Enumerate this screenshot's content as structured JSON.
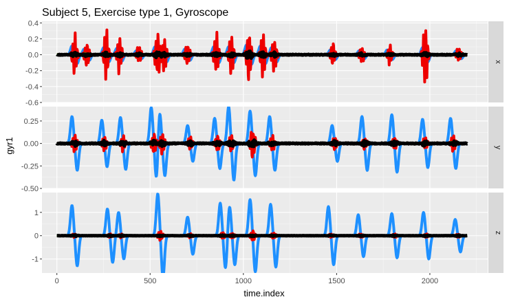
{
  "chart_data": {
    "type": "line",
    "title": "Subject 5, Exercise type 1, Gyroscope",
    "xlabel": "time.index",
    "ylabel": "gyr1",
    "xlim": [
      -80,
      2310
    ],
    "x_ticks": [
      0,
      500,
      1000,
      1500,
      2000
    ],
    "grid": true,
    "legend": "none",
    "x_extent": [
      0,
      2200
    ],
    "series_colors": [
      "#1e90ff",
      "#ee0000",
      "#00cc00",
      "#000000"
    ],
    "facets": [
      {
        "strip": "x",
        "ylim": [
          -0.6,
          0.42
        ],
        "y_ticks": [
          0.4,
          0.2,
          0.0,
          -0.2,
          -0.4,
          -0.6
        ],
        "y_tick_labels": [
          "0.4",
          "0.2",
          "0.0",
          "-0.2",
          "-0.4",
          "-0.6"
        ],
        "bursts": [
          {
            "x": 95,
            "amp": [
              0.11,
              0.3,
              0.02,
              0.03
            ]
          },
          {
            "x": 160,
            "amp": [
              0.07,
              0.2,
              0.02,
              0.02
            ]
          },
          {
            "x": 265,
            "amp": [
              0.09,
              0.34,
              0.02,
              0.03
            ]
          },
          {
            "x": 335,
            "amp": [
              0.08,
              0.26,
              0.02,
              0.03
            ]
          },
          {
            "x": 440,
            "amp": [
              0.05,
              0.13,
              0.01,
              0.02
            ]
          },
          {
            "x": 540,
            "amp": [
              0.1,
              0.33,
              0.02,
              0.04
            ]
          },
          {
            "x": 575,
            "amp": [
              0.09,
              0.24,
              0.02,
              0.03
            ]
          },
          {
            "x": 700,
            "amp": [
              0.07,
              0.17,
              0.02,
              0.02
            ]
          },
          {
            "x": 855,
            "amp": [
              0.1,
              0.3,
              0.02,
              0.03
            ]
          },
          {
            "x": 935,
            "amp": [
              0.1,
              0.29,
              0.02,
              0.03
            ]
          },
          {
            "x": 1030,
            "amp": [
              0.12,
              0.37,
              0.03,
              0.06
            ]
          },
          {
            "x": 1105,
            "amp": [
              0.11,
              0.3,
              0.02,
              0.04
            ]
          },
          {
            "x": 1165,
            "amp": [
              0.09,
              0.26,
              0.02,
              0.03
            ]
          },
          {
            "x": 1480,
            "amp": [
              0.06,
              0.16,
              0.02,
              0.02
            ]
          },
          {
            "x": 1635,
            "amp": [
              0.05,
              0.13,
              0.01,
              0.02
            ]
          },
          {
            "x": 1785,
            "amp": [
              0.06,
              0.14,
              0.02,
              0.02
            ]
          },
          {
            "x": 1975,
            "amp": [
              0.09,
              0.45,
              0.02,
              0.03
            ]
          },
          {
            "x": 2155,
            "amp": [
              0.05,
              0.11,
              0.01,
              0.02
            ]
          }
        ]
      },
      {
        "strip": "y",
        "ylim": [
          -0.5,
          0.41
        ],
        "y_ticks": [
          0.25,
          0.0,
          -0.25,
          -0.5
        ],
        "y_tick_labels": [
          "0.25",
          "0.00",
          "-0.25",
          "-0.50"
        ],
        "bursts": [
          {
            "x": 95,
            "amp": [
              0.3,
              0.12,
              0.02,
              0.03
            ]
          },
          {
            "x": 255,
            "amp": [
              0.26,
              0.1,
              0.02,
              0.03
            ]
          },
          {
            "x": 355,
            "amp": [
              0.29,
              0.1,
              0.02,
              0.03
            ]
          },
          {
            "x": 520,
            "amp": [
              0.4,
              0.12,
              0.02,
              0.03
            ]
          },
          {
            "x": 565,
            "amp": [
              0.36,
              0.14,
              0.02,
              0.03
            ]
          },
          {
            "x": 715,
            "amp": [
              0.2,
              0.08,
              0.02,
              0.03
            ]
          },
          {
            "x": 860,
            "amp": [
              0.28,
              0.1,
              0.02,
              0.03
            ]
          },
          {
            "x": 935,
            "amp": [
              0.41,
              0.12,
              0.02,
              0.04
            ]
          },
          {
            "x": 1050,
            "amp": [
              0.36,
              0.2,
              0.02,
              0.05
            ]
          },
          {
            "x": 1155,
            "amp": [
              0.3,
              0.1,
              0.02,
              0.03
            ]
          },
          {
            "x": 1490,
            "amp": [
              0.2,
              0.08,
              0.02,
              0.03
            ]
          },
          {
            "x": 1650,
            "amp": [
              0.3,
              0.08,
              0.02,
              0.03
            ]
          },
          {
            "x": 1810,
            "amp": [
              0.32,
              0.08,
              0.02,
              0.03
            ]
          },
          {
            "x": 1975,
            "amp": [
              0.27,
              0.08,
              0.02,
              0.03
            ]
          },
          {
            "x": 2125,
            "amp": [
              0.28,
              0.1,
              0.02,
              0.03
            ]
          }
        ]
      },
      {
        "strip": "z",
        "ylim": [
          -1.6,
          1.85
        ],
        "y_ticks": [
          1,
          0,
          -1
        ],
        "y_tick_labels": [
          "1",
          "0",
          "-1"
        ],
        "bursts": [
          {
            "x": 95,
            "amp": [
              1.3,
              0.1,
              0.02,
              0.03
            ]
          },
          {
            "x": 285,
            "amp": [
              1.15,
              0.1,
              0.02,
              0.03
            ]
          },
          {
            "x": 345,
            "amp": [
              1.0,
              0.1,
              0.02,
              0.03
            ]
          },
          {
            "x": 555,
            "amp": [
              1.8,
              0.25,
              0.02,
              0.04
            ]
          },
          {
            "x": 715,
            "amp": [
              0.8,
              0.1,
              0.02,
              0.03
            ]
          },
          {
            "x": 890,
            "amp": [
              1.4,
              0.15,
              0.02,
              0.03
            ]
          },
          {
            "x": 940,
            "amp": [
              1.25,
              0.15,
              0.02,
              0.03
            ]
          },
          {
            "x": 1050,
            "amp": [
              1.55,
              0.25,
              0.02,
              0.04
            ]
          },
          {
            "x": 1160,
            "amp": [
              1.35,
              0.15,
              0.02,
              0.03
            ]
          },
          {
            "x": 1470,
            "amp": [
              1.25,
              0.1,
              0.02,
              0.03
            ]
          },
          {
            "x": 1630,
            "amp": [
              0.9,
              0.1,
              0.02,
              0.03
            ]
          },
          {
            "x": 1810,
            "amp": [
              0.95,
              0.1,
              0.02,
              0.03
            ]
          },
          {
            "x": 1980,
            "amp": [
              1.0,
              0.1,
              0.02,
              0.03
            ]
          },
          {
            "x": 2150,
            "amp": [
              0.7,
              0.1,
              0.02,
              0.03
            ]
          }
        ]
      }
    ]
  }
}
